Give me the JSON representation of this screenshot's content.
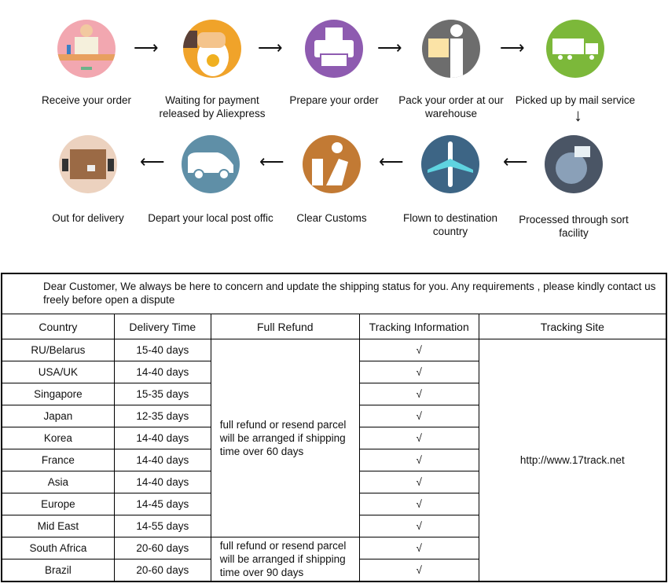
{
  "steps_row1": [
    {
      "label": "Receive your order",
      "icon": "person-at-desk-icon",
      "color": "#f2a7b0"
    },
    {
      "label": "Waiting for payment released by Aliexpress",
      "icon": "money-bag-icon",
      "color": "#f0a32a"
    },
    {
      "label": "Prepare your order",
      "icon": "printer-icon",
      "color": "#8e5bb0"
    },
    {
      "label": "Pack your order at our warehouse",
      "icon": "person-carrying-box-icon",
      "color": "#6d6d6d"
    },
    {
      "label": "Picked up by mail service",
      "icon": "truck-icon",
      "color": "#7cb83a"
    }
  ],
  "steps_row2": [
    {
      "label": "Out for delivery",
      "icon": "package-delivery-icon",
      "color": "#ecd2bf"
    },
    {
      "label": "Depart your local post offic",
      "icon": "van-icon",
      "color": "#5f8fa7"
    },
    {
      "label": "Clear  Customs",
      "icon": "customs-officer-icon",
      "color": "#c27a34"
    },
    {
      "label": "Flown to destination country",
      "icon": "airplane-icon",
      "color": "#3d6585"
    },
    {
      "label": "Processed through sort facility",
      "icon": "globe-mail-icon",
      "color": "#4a5565"
    }
  ],
  "table": {
    "message": "Dear Customer, We always be here to concern and update the shipping status for you.  Any requirements , please kindly contact us freely before open a dispute",
    "headers": [
      "Country",
      "Delivery Time",
      "Full Refund",
      "Tracking Information",
      "Tracking Site"
    ],
    "rows": [
      {
        "country": "RU/Belarus",
        "time": "15-40 days",
        "tracking": "√"
      },
      {
        "country": "USA/UK",
        "time": "14-40 days",
        "tracking": "√"
      },
      {
        "country": "Singapore",
        "time": "15-35 days",
        "tracking": "√"
      },
      {
        "country": "Japan",
        "time": "12-35 days",
        "tracking": "√"
      },
      {
        "country": "Korea",
        "time": "14-40 days",
        "tracking": "√"
      },
      {
        "country": "France",
        "time": "14-40 days",
        "tracking": "√"
      },
      {
        "country": "Asia",
        "time": "14-40 days",
        "tracking": "√"
      },
      {
        "country": "Europe",
        "time": "14-45 days",
        "tracking": "√"
      },
      {
        "country": "Mid East",
        "time": "14-55 days",
        "tracking": "√"
      },
      {
        "country": "South Africa",
        "time": "20-60 days",
        "tracking": "√"
      },
      {
        "country": "Brazil",
        "time": "20-60 days",
        "tracking": "√"
      }
    ],
    "refund_60": "full refund or resend parcel will be arranged if shipping time over 60 days",
    "refund_90": "full refund or resend parcel will be arranged if shipping time over 90 days",
    "site": "http://www.17track.net"
  }
}
